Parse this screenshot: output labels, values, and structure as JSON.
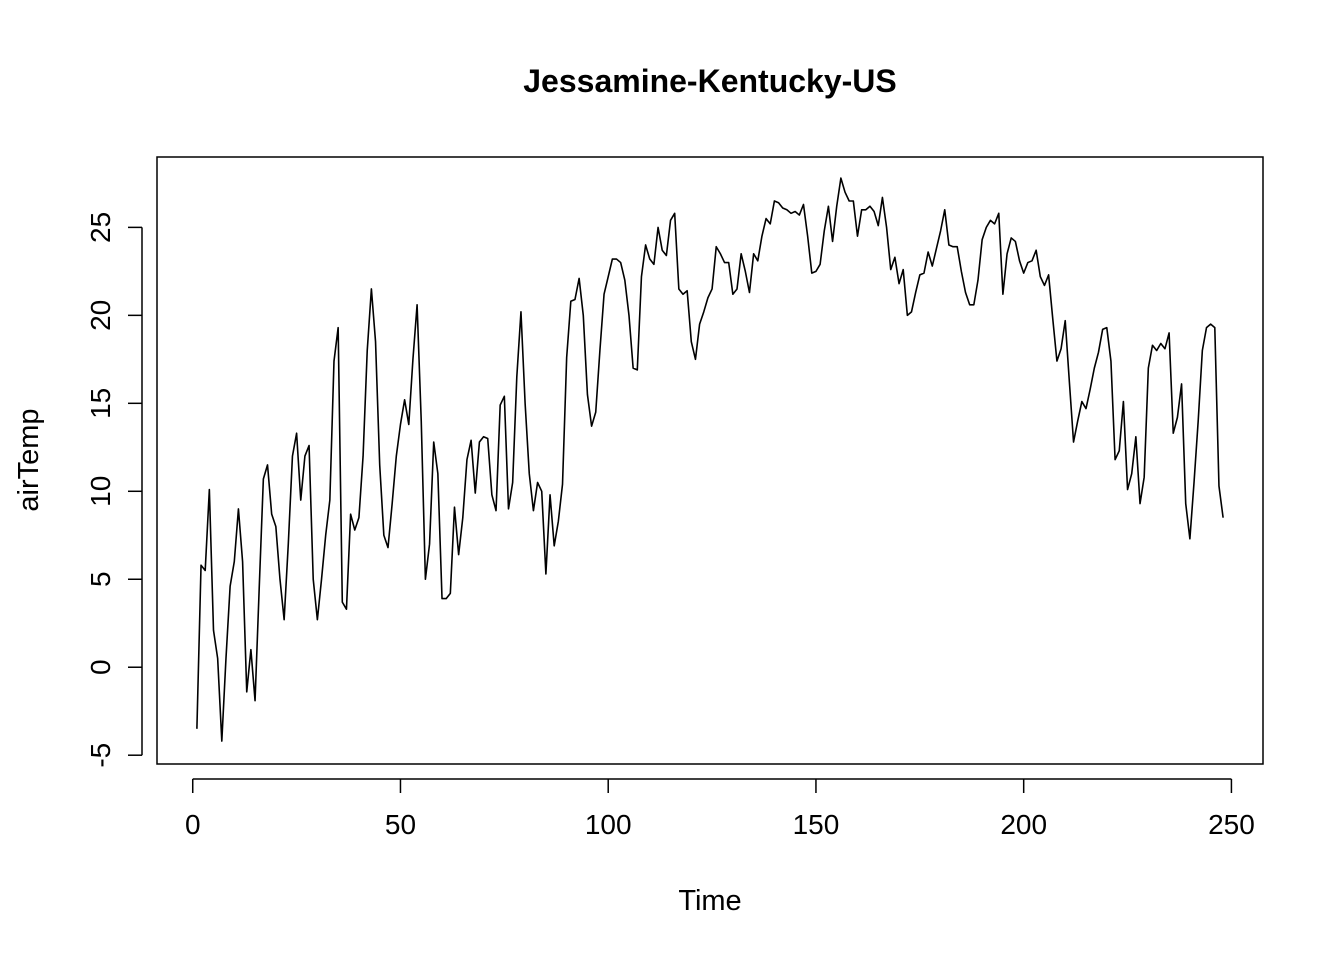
{
  "chart_data": {
    "type": "line",
    "title": "Jessamine-Kentucky-US",
    "xlabel": "Time",
    "ylabel": "airTemp",
    "xlim": [
      -8.6,
      257.6
    ],
    "ylim": [
      -5.5,
      29.0
    ],
    "x_ticks": [
      0,
      50,
      100,
      150,
      200,
      250
    ],
    "y_ticks": [
      -5,
      0,
      5,
      10,
      15,
      20,
      25
    ],
    "grid": false,
    "legend": "none",
    "colors": {
      "line": "#000000",
      "frame": "#000000",
      "background": "#ffffff"
    },
    "series": [
      {
        "x": [
          1,
          2,
          3,
          4,
          5,
          6,
          7,
          8,
          9,
          10,
          11,
          12,
          13,
          14,
          15,
          16,
          17,
          18,
          19,
          20,
          21,
          22,
          23,
          24,
          25,
          26,
          27,
          28,
          29,
          30,
          31,
          32,
          33,
          34,
          35,
          36,
          37,
          38,
          39,
          40,
          41,
          42,
          43,
          44,
          45,
          46,
          47,
          48,
          49,
          50,
          51,
          52,
          53,
          54,
          55,
          56,
          57,
          58,
          59,
          60,
          61,
          62,
          63,
          64,
          65,
          66,
          67,
          68,
          69,
          70,
          71,
          72,
          73,
          74,
          75,
          76,
          77,
          78,
          79,
          80,
          81,
          82,
          83,
          84,
          85,
          86,
          87,
          88,
          89,
          90,
          91,
          92,
          93,
          94,
          95,
          96,
          97,
          98,
          99,
          100,
          101,
          102,
          103,
          104,
          105,
          106,
          107,
          108,
          109,
          110,
          111,
          112,
          113,
          114,
          115,
          116,
          117,
          118,
          119,
          120,
          121,
          122,
          123,
          124,
          125,
          126,
          127,
          128,
          129,
          130,
          131,
          132,
          133,
          134,
          135,
          136,
          137,
          138,
          139,
          140,
          141,
          142,
          143,
          144,
          145,
          146,
          147,
          148,
          149,
          150,
          151,
          152,
          153,
          154,
          155,
          156,
          157,
          158,
          159,
          160,
          161,
          162,
          163,
          164,
          165,
          166,
          167,
          168,
          169,
          170,
          171,
          172,
          173,
          174,
          175,
          176,
          177,
          178,
          179,
          180,
          181,
          182,
          183,
          184,
          185,
          186,
          187,
          188,
          189,
          190,
          191,
          192,
          193,
          194,
          195,
          196,
          197,
          198,
          199,
          200,
          201,
          202,
          203,
          204,
          205,
          206,
          207,
          208,
          209,
          210,
          211,
          212,
          213,
          214,
          215,
          216,
          217,
          218,
          219,
          220,
          221,
          222,
          223,
          224,
          225,
          226,
          227,
          228,
          229,
          230,
          231,
          232,
          233,
          234,
          235,
          236,
          237,
          238,
          239,
          240,
          241,
          242,
          243,
          244,
          245,
          246,
          247,
          248
        ],
        "values": [
          -3.5,
          5.8,
          5.5,
          10.1,
          2.1,
          0.5,
          -4.2,
          0.5,
          4.6,
          6.0,
          9.0,
          6.0,
          -1.4,
          1.0,
          -1.9,
          4.5,
          10.7,
          11.5,
          8.7,
          8.0,
          5.0,
          2.7,
          7.0,
          12.0,
          13.3,
          9.5,
          12.0,
          12.6,
          5.0,
          2.7,
          5.0,
          7.5,
          9.5,
          17.4,
          19.3,
          3.7,
          3.3,
          8.7,
          7.8,
          8.5,
          12.0,
          18.0,
          21.5,
          18.5,
          11.5,
          7.5,
          6.8,
          9.3,
          12.0,
          13.8,
          15.2,
          13.8,
          17.5,
          20.6,
          14.0,
          5.0,
          7.0,
          12.8,
          11.0,
          3.9,
          3.9,
          4.2,
          9.1,
          6.4,
          8.5,
          11.8,
          12.9,
          9.9,
          12.8,
          13.1,
          13.0,
          9.8,
          8.9,
          14.9,
          15.4,
          9.0,
          10.5,
          16.5,
          20.2,
          15.0,
          11.0,
          8.9,
          10.5,
          10.0,
          5.3,
          9.8,
          6.9,
          8.3,
          10.4,
          17.6,
          20.8,
          20.9,
          22.1,
          20.0,
          15.5,
          13.7,
          14.5,
          18.0,
          21.2,
          22.2,
          23.2,
          23.2,
          23.0,
          22.0,
          20.0,
          17.0,
          16.9,
          22.2,
          24.0,
          23.2,
          22.9,
          25.0,
          23.7,
          23.4,
          25.4,
          25.8,
          21.5,
          21.2,
          21.4,
          18.5,
          17.5,
          19.5,
          20.2,
          21.0,
          21.5,
          23.9,
          23.5,
          23.0,
          23.0,
          21.2,
          21.5,
          23.5,
          22.5,
          21.3,
          23.5,
          23.1,
          24.5,
          25.5,
          25.2,
          26.5,
          26.4,
          26.1,
          26.0,
          25.8,
          25.9,
          25.7,
          26.3,
          24.5,
          22.4,
          22.5,
          22.9,
          24.8,
          26.2,
          24.2,
          26.2,
          27.8,
          27.0,
          26.5,
          26.5,
          24.5,
          26.0,
          26.0,
          26.2,
          25.9,
          25.1,
          26.7,
          25.0,
          22.6,
          23.3,
          21.8,
          22.6,
          20.0,
          20.2,
          21.3,
          22.3,
          22.4,
          23.6,
          22.8,
          23.8,
          24.8,
          26.0,
          24.0,
          23.9,
          23.9,
          22.5,
          21.3,
          20.6,
          20.6,
          22.0,
          24.3,
          25.0,
          25.4,
          25.2,
          25.8,
          21.2,
          23.5,
          24.4,
          24.2,
          23.1,
          22.4,
          23.0,
          23.1,
          23.7,
          22.2,
          21.7,
          22.3,
          19.8,
          17.4,
          18.1,
          19.7,
          16.2,
          12.8,
          14.0,
          15.1,
          14.7,
          15.8,
          17.0,
          17.9,
          19.2,
          19.3,
          17.4,
          11.8,
          12.3,
          15.1,
          10.1,
          11.0,
          13.1,
          9.3,
          10.8,
          17.0,
          18.3,
          18.0,
          18.4,
          18.1,
          19.0,
          13.3,
          14.2,
          16.1,
          9.3,
          7.3,
          10.5,
          14.0,
          18.0,
          19.3,
          19.5,
          19.3,
          10.3,
          8.5
        ]
      }
    ]
  }
}
